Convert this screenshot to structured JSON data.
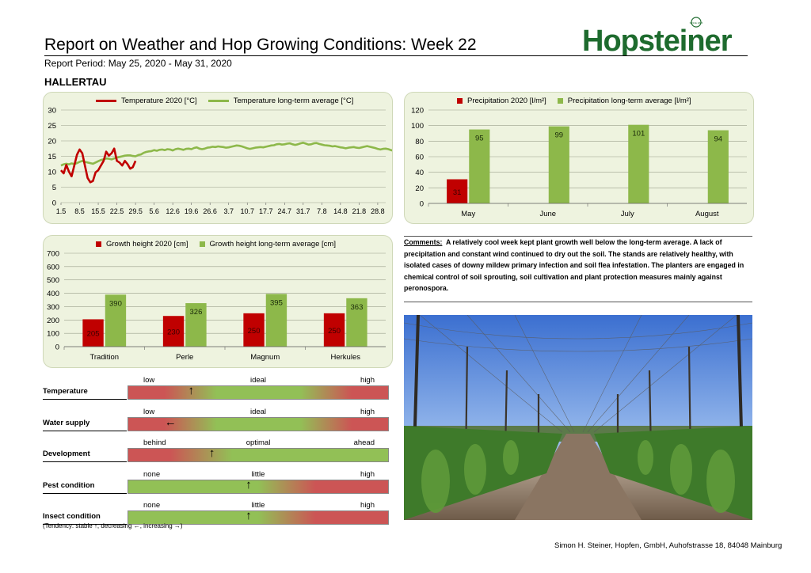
{
  "header": {
    "title": "Report on Weather and Hop Growing Conditions: Week 22",
    "period": "Report Period: May 25, 2020  - May 31, 2020",
    "region": "HALLERTAU",
    "logo_text": "Hopsteiner",
    "logo_small": "SINCE 1845",
    "brand_color": "#1e6b2e"
  },
  "chart_data": [
    {
      "id": "temperature",
      "type": "line",
      "legend_position": "top",
      "ylim": [
        0,
        30
      ],
      "yticks": [
        0,
        5,
        10,
        15,
        20,
        25,
        30
      ],
      "grid": true,
      "x_tick_labels": [
        "1.5",
        "8.5",
        "15.5",
        "22.5",
        "29.5",
        "5.6",
        "12.6",
        "19.6",
        "26.6",
        "3.7",
        "10.7",
        "17.7",
        "24.7",
        "31.7",
        "7.8",
        "14.8",
        "21.8",
        "28.8"
      ],
      "x_start": "2020-05-01",
      "x_end": "2020-08-31",
      "series": [
        {
          "name": "Temperature 2020 [°C]",
          "color": "#c00000",
          "start": "2020-05-01",
          "values": [
            10.5,
            9.5,
            12.2,
            10,
            8.5,
            12,
            15.5,
            17.2,
            16,
            12,
            8,
            6.6,
            7,
            9.8,
            10.5,
            12,
            13.5,
            16.5,
            15.2,
            16,
            17.5,
            13.5,
            13,
            12,
            13.5,
            12.5,
            11,
            11.5,
            13.5
          ]
        },
        {
          "name": "Temperature long-term average [°C]",
          "color": "#8db84a",
          "start": "2020-05-01",
          "values": [
            12,
            12.4,
            12.6,
            12.4,
            12.7,
            12.5,
            12.8,
            13.2,
            13.5,
            13.2,
            13,
            12.8,
            12.6,
            13,
            13.4,
            13.8,
            14,
            14.3,
            14.2,
            14,
            14.3,
            14.6,
            14.8,
            15,
            15.2,
            15.3,
            15.3,
            15.1,
            15,
            15.4,
            15.6,
            16.1,
            16.4,
            16.6,
            16.7,
            17,
            16.8,
            17.1,
            17.2,
            17,
            17.3,
            17.2,
            16.9,
            17.3,
            17.5,
            17.3,
            17.1,
            17.4,
            17.5,
            17.3,
            17.7,
            17.9,
            17.5,
            17.3,
            17.5,
            17.8,
            17.9,
            18.1,
            18,
            18.2,
            18.1,
            18,
            17.8,
            17.9,
            18.1,
            18.3,
            18.5,
            18.4,
            18.2,
            17.9,
            17.6,
            17.4,
            17.6,
            17.8,
            17.9,
            18,
            17.9,
            18.1,
            18.3,
            18.5,
            18.6,
            18.9,
            19,
            18.8,
            18.9,
            19.1,
            19.2,
            18.9,
            18.7,
            18.9,
            19.2,
            19.4,
            19.1,
            18.8,
            18.9,
            19.2,
            19.3,
            19,
            18.8,
            18.6,
            18.5,
            18.4,
            18.2,
            18.3,
            18.1,
            17.9,
            17.8,
            17.6,
            17.8,
            17.9,
            18,
            17.8,
            17.7,
            17.9,
            18.1,
            18.3,
            18.1,
            17.9,
            17.7,
            17.4,
            17.2,
            17.4,
            17.5,
            17.3,
            17,
            16.8,
            16.6,
            16.2
          ]
        }
      ]
    },
    {
      "id": "precipitation",
      "type": "bar",
      "legend_position": "top",
      "categories": [
        "May",
        "June",
        "July",
        "August"
      ],
      "ylim": [
        0,
        120
      ],
      "yticks": [
        0,
        20,
        40,
        60,
        80,
        100,
        120
      ],
      "grid": true,
      "series": [
        {
          "name": "Precipitation 2020 [l/m²]",
          "color": "#c00000",
          "values": [
            31,
            null,
            null,
            null
          ]
        },
        {
          "name": "Precipitation long-term average [l/m²]",
          "color": "#8db84a",
          "values": [
            95,
            99,
            101,
            94
          ]
        }
      ]
    },
    {
      "id": "growth",
      "type": "bar",
      "legend_position": "top",
      "categories": [
        "Tradition",
        "Perle",
        "Magnum",
        "Herkules"
      ],
      "ylim": [
        0,
        700
      ],
      "yticks": [
        0,
        100,
        200,
        300,
        400,
        500,
        600,
        700
      ],
      "grid": true,
      "series": [
        {
          "name": "Growth height 2020 [cm]",
          "color": "#c00000",
          "values": [
            205,
            230,
            250,
            250
          ]
        },
        {
          "name": "Growth height long-term average [cm]",
          "color": "#8db84a",
          "values": [
            390,
            326,
            395,
            363
          ]
        }
      ]
    }
  ],
  "indicators": [
    {
      "label": "Temperature",
      "left": "low",
      "mid": "ideal",
      "right": "high",
      "scheme": "red-green-red",
      "level": 0.25,
      "arrow": "↑"
    },
    {
      "label": "Water supply",
      "left": "low",
      "mid": "ideal",
      "right": "high",
      "scheme": "red-green-red",
      "level": 0.16,
      "arrow": "←"
    },
    {
      "label": "Development",
      "left": "behind",
      "mid": "optimal",
      "right": "ahead",
      "scheme": "red-green",
      "level": 0.33,
      "arrow": "↑"
    },
    {
      "label": "Pest condition",
      "left": "none",
      "mid": "little",
      "right": "high",
      "scheme": "green-red",
      "level": 0.47,
      "arrow": "↑"
    },
    {
      "label": "Insect condition",
      "left": "none",
      "mid": "little",
      "right": "high",
      "scheme": "green-red",
      "level": 0.47,
      "arrow": "↑"
    }
  ],
  "tendency_note": "(Tendency: stable ↑, decreasing ←, increasing →)",
  "comments": {
    "label": "Comments:",
    "text": "A relatively cool week kept plant growth well below the long-term average. A lack of precipitation and constant wind continued to dry out the soil. The stands are relatively healthy, with isolated cases of downy mildew primary infection and soil flea infestation. The planters are engaged in chemical control of soil sprouting, soil cultivation and plant protection measures mainly against peronospora."
  },
  "footer": "Simon H. Steiner, Hopfen, GmbH, Auhofstrasse 18, 84048 Mainburg",
  "colors": {
    "red": "#c00000",
    "green": "#8db84a",
    "panel": "#eef3df",
    "ind_red": "#cc5555",
    "ind_green": "#92c056"
  }
}
